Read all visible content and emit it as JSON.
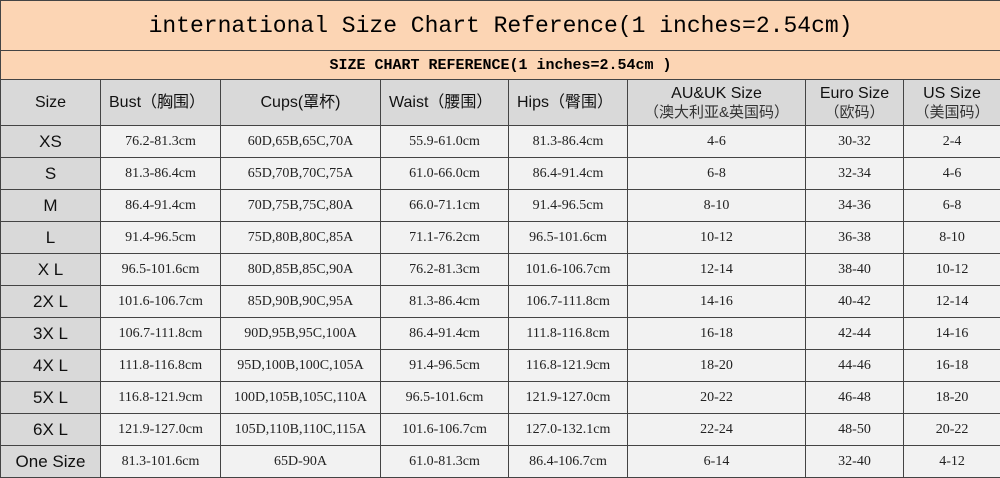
{
  "title": "international Size Chart Reference(1 inches=2.54cm)",
  "subtitle": "SIZE CHART REFERENCE(1 inches=2.54cm )",
  "colors": {
    "title_bg": "#fcd5b4",
    "header_bg": "#d9d9d9",
    "cell_bg": "#f2f2f2"
  },
  "headers": [
    {
      "label": "Size",
      "sub": ""
    },
    {
      "label": "Bust（胸围）",
      "sub": ""
    },
    {
      "label": "Cups(罩杯)",
      "sub": ""
    },
    {
      "label": "Waist（腰围）",
      "sub": ""
    },
    {
      "label": "Hips（臀围）",
      "sub": ""
    },
    {
      "label": "AU&UK Size",
      "sub": "（澳大利亚&英国码）"
    },
    {
      "label": "Euro Size",
      "sub": "（欧码）"
    },
    {
      "label": "US Size",
      "sub": "（美国码）"
    }
  ],
  "rows": [
    [
      "XS",
      "76.2-81.3cm",
      "60D,65B,65C,70A",
      "55.9-61.0cm",
      "81.3-86.4cm",
      "4-6",
      "30-32",
      "2-4"
    ],
    [
      "S",
      "81.3-86.4cm",
      "65D,70B,70C,75A",
      "61.0-66.0cm",
      "86.4-91.4cm",
      "6-8",
      "32-34",
      "4-6"
    ],
    [
      "M",
      "86.4-91.4cm",
      "70D,75B,75C,80A",
      "66.0-71.1cm",
      "91.4-96.5cm",
      "8-10",
      "34-36",
      "6-8"
    ],
    [
      "L",
      "91.4-96.5cm",
      "75D,80B,80C,85A",
      "71.1-76.2cm",
      "96.5-101.6cm",
      "10-12",
      "36-38",
      "8-10"
    ],
    [
      "X L",
      "96.5-101.6cm",
      "80D,85B,85C,90A",
      "76.2-81.3cm",
      "101.6-106.7cm",
      "12-14",
      "38-40",
      "10-12"
    ],
    [
      "2X L",
      "101.6-106.7cm",
      "85D,90B,90C,95A",
      "81.3-86.4cm",
      "106.7-111.8cm",
      "14-16",
      "40-42",
      "12-14"
    ],
    [
      "3X L",
      "106.7-111.8cm",
      "90D,95B,95C,100A",
      "86.4-91.4cm",
      "111.8-116.8cm",
      "16-18",
      "42-44",
      "14-16"
    ],
    [
      "4X L",
      "111.8-116.8cm",
      "95D,100B,100C,105A",
      "91.4-96.5cm",
      "116.8-121.9cm",
      "18-20",
      "44-46",
      "16-18"
    ],
    [
      "5X L",
      "116.8-121.9cm",
      "100D,105B,105C,110A",
      "96.5-101.6cm",
      "121.9-127.0cm",
      "20-22",
      "46-48",
      "18-20"
    ],
    [
      "6X L",
      "121.9-127.0cm",
      "105D,110B,110C,115A",
      "101.6-106.7cm",
      "127.0-132.1cm",
      "22-24",
      "48-50",
      "20-22"
    ],
    [
      "One Size",
      "81.3-101.6cm",
      "65D-90A",
      "61.0-81.3cm",
      "86.4-106.7cm",
      "6-14",
      "32-40",
      "4-12"
    ]
  ]
}
